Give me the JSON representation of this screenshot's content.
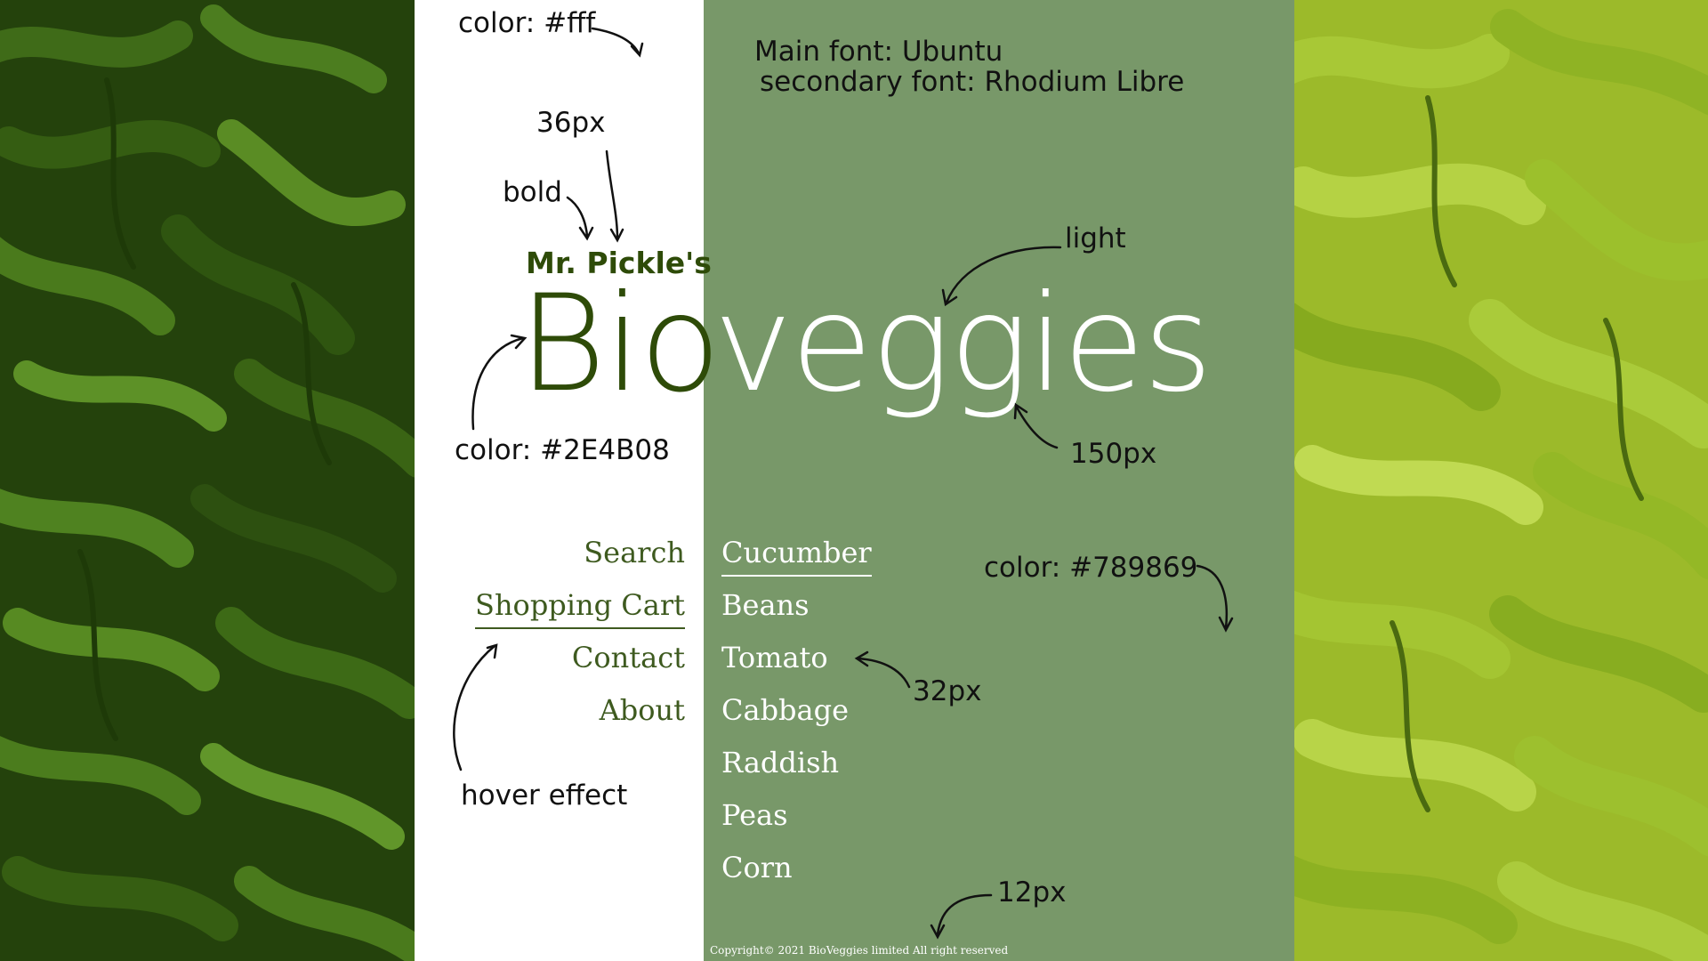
{
  "colors": {
    "white": "#fff",
    "dark_green": "#2E4B08",
    "sage": "#789869"
  },
  "annotations": {
    "color_white": "color: #fff",
    "fonts_main": "Main font: Ubuntu",
    "fonts_secondary": "secondary font: Rhodium Libre",
    "size_36": "36px",
    "bold": "bold",
    "light": "light",
    "color_dark": "color: #2E4B08",
    "size_150": "150px",
    "color_sage": "color: #789869",
    "size_32": "32px",
    "hover": "hover effect",
    "size_12": "12px"
  },
  "brand": {
    "small": "Mr. Pickle's",
    "part1": "Bio",
    "part2": "veggies"
  },
  "nav_left": [
    "Search",
    "Shopping Cart",
    "Contact",
    "About"
  ],
  "nav_right": [
    "Cucumber",
    "Beans",
    "Tomato",
    "Cabbage",
    "Raddish",
    "Peas",
    "Corn"
  ],
  "footer": {
    "copyright": "Copyright© 2021 BioVeggies limited All right reserved"
  }
}
